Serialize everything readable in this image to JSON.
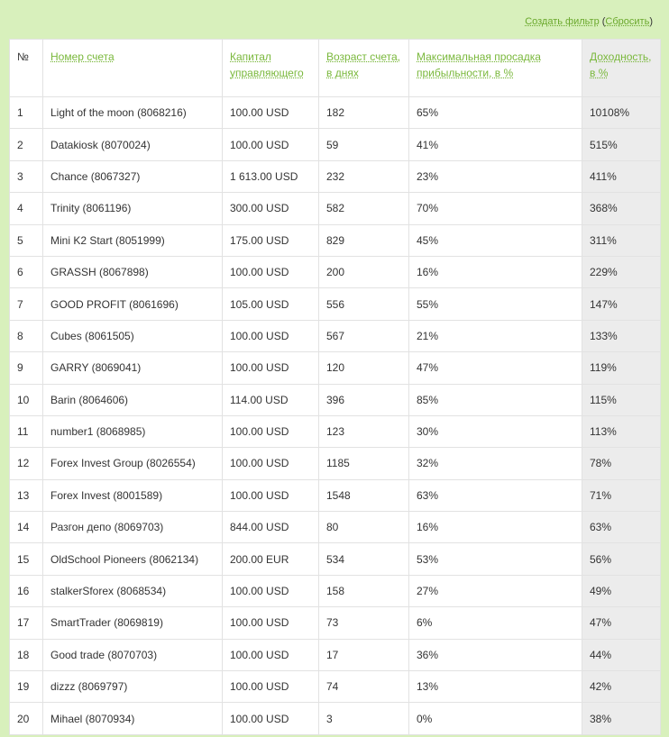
{
  "filter": {
    "create": "Создать фильтр",
    "open": "(",
    "reset": "Сбросить",
    "close": ")"
  },
  "table": {
    "header": [
      "№",
      "Номер счета",
      "Капитал управляющего",
      "Возраст счета, в днях",
      "Максимальная просадка прибыльности, в %",
      "Доходность, в %"
    ],
    "rows": [
      [
        "1",
        "Light of the moon (8068216)",
        "100.00 USD",
        "182",
        "65%",
        "10108%"
      ],
      [
        "2",
        "Datakiosk (8070024)",
        "100.00 USD",
        "59",
        "41%",
        "515%"
      ],
      [
        "3",
        "Chance (8067327)",
        "1 613.00 USD",
        "232",
        "23%",
        "411%"
      ],
      [
        "4",
        "Trinity (8061196)",
        "300.00 USD",
        "582",
        "70%",
        "368%"
      ],
      [
        "5",
        "Mini K2 Start (8051999)",
        "175.00 USD",
        "829",
        "45%",
        "311%"
      ],
      [
        "6",
        "GRASSH (8067898)",
        "100.00 USD",
        "200",
        "16%",
        "229%"
      ],
      [
        "7",
        "GOOD PROFIT (8061696)",
        "105.00 USD",
        "556",
        "55%",
        "147%"
      ],
      [
        "8",
        "Cubes (8061505)",
        "100.00 USD",
        "567",
        "21%",
        "133%"
      ],
      [
        "9",
        "GARRY (8069041)",
        "100.00 USD",
        "120",
        "47%",
        "119%"
      ],
      [
        "10",
        "Barin (8064606)",
        "114.00 USD",
        "396",
        "85%",
        "115%"
      ],
      [
        "11",
        "number1 (8068985)",
        "100.00 USD",
        "123",
        "30%",
        "113%"
      ],
      [
        "12",
        "Forex Invest Group (8026554)",
        "100.00 USD",
        "1185",
        "32%",
        "78%"
      ],
      [
        "13",
        "Forex Invest (8001589)",
        "100.00 USD",
        "1548",
        "63%",
        "71%"
      ],
      [
        "14",
        "Разгон депо (8069703)",
        "844.00 USD",
        "80",
        "16%",
        "63%"
      ],
      [
        "15",
        "OldSchool Pioneers (8062134)",
        "200.00 EUR",
        "534",
        "53%",
        "56%"
      ],
      [
        "16",
        "stalkerSforex (8068534)",
        "100.00 USD",
        "158",
        "27%",
        "49%"
      ],
      [
        "17",
        "SmartTrader (8069819)",
        "100.00 USD",
        "73",
        "6%",
        "47%"
      ],
      [
        "18",
        "Good trade (8070703)",
        "100.00 USD",
        "17",
        "36%",
        "44%"
      ],
      [
        "19",
        "dizzz (8069797)",
        "100.00 USD",
        "74",
        "13%",
        "42%"
      ],
      [
        "20",
        "Mihael (8070934)",
        "100.00 USD",
        "3",
        "0%",
        "38%"
      ]
    ]
  }
}
